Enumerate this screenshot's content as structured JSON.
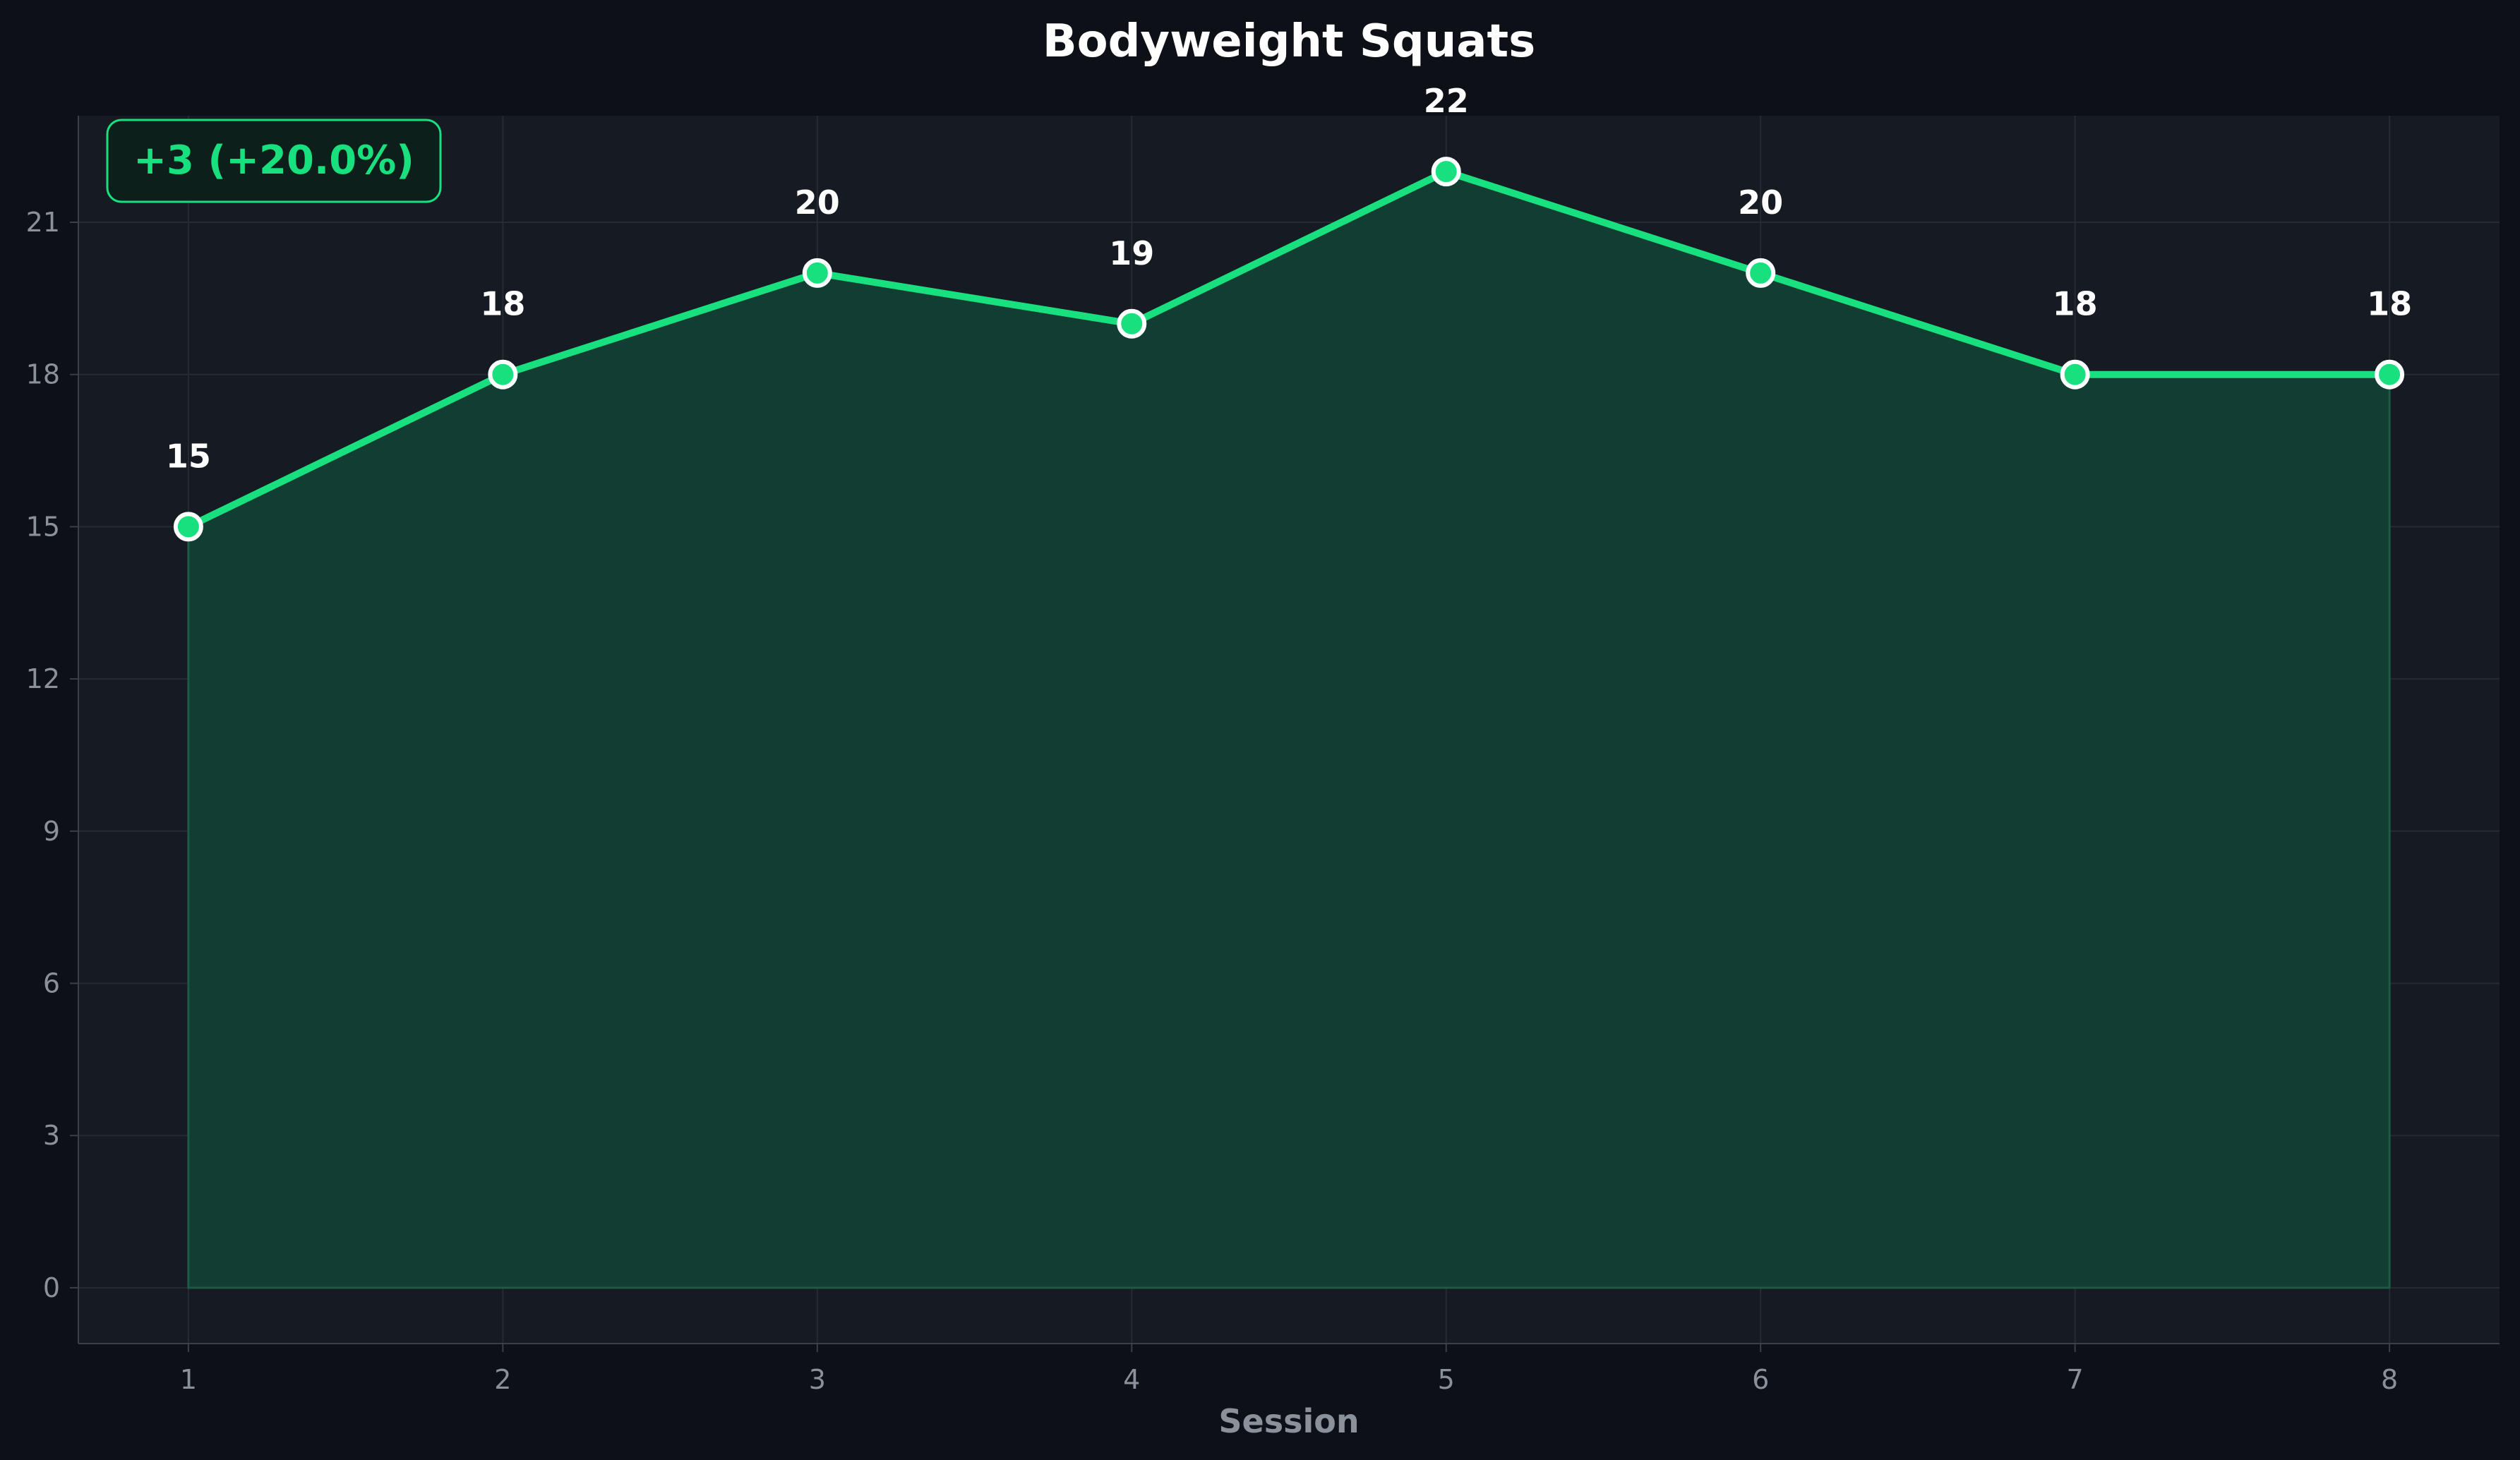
{
  "chart_data": {
    "type": "line",
    "title": "Bodyweight Squats",
    "xlabel": "Session",
    "ylabel": "",
    "x": [
      1,
      2,
      3,
      4,
      5,
      6,
      7,
      8
    ],
    "series": [
      {
        "values": [
          15,
          18,
          20,
          19,
          22,
          20,
          18,
          18
        ]
      }
    ],
    "xlim": [
      0.65,
      8.35
    ],
    "ylim": [
      -1.1,
      23.1
    ],
    "yticks": [
      0,
      3,
      6,
      9,
      12,
      15,
      18,
      21
    ],
    "xticks": [
      1,
      2,
      3,
      4,
      5,
      6,
      7,
      8
    ],
    "grid": true,
    "area_fill": true,
    "data_labels": true,
    "annotation": "+3 (+20.0%)",
    "colors": {
      "background": "#0d1017",
      "plot_background": "#161a22",
      "line": "#18e07f",
      "area": "#123d33",
      "marker_edge": "#ffffff",
      "grid": "#262b33",
      "text": "#ffffff",
      "muted_text": "#8b919b"
    }
  }
}
